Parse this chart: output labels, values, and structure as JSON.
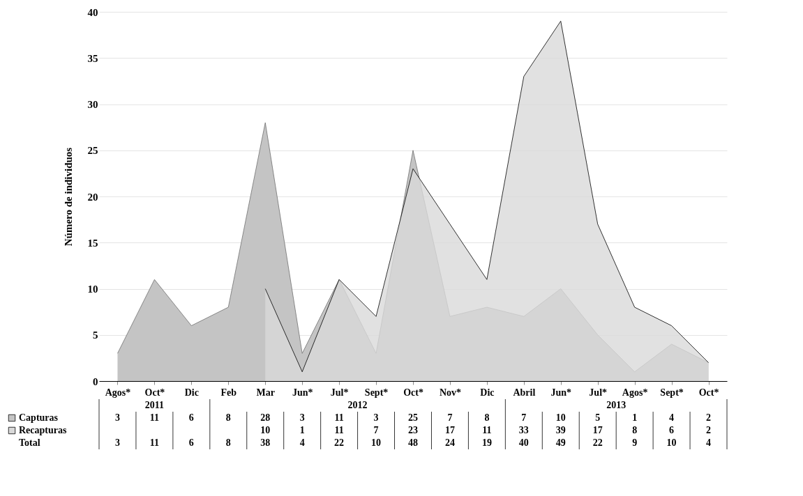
{
  "chart_data": {
    "type": "area",
    "ylabel": "Número de individuos",
    "categories": [
      "Agos*",
      "Oct*",
      "Dic",
      "Feb",
      "Mar",
      "Jun*",
      "Jul*",
      "Sept*",
      "Oct*",
      "Nov*",
      "Dic",
      "Abril",
      "Jun*",
      "Jul*",
      "Agos*",
      "Sept*",
      "Oct*"
    ],
    "series": [
      {
        "name": "Capturas",
        "color": "#c4c4c4",
        "values": [
          3,
          11,
          6,
          8,
          28,
          3,
          11,
          3,
          25,
          7,
          8,
          7,
          10,
          5,
          1,
          4,
          2
        ],
        "value_labels": [
          "3",
          "11",
          "6",
          "8",
          "28",
          "3",
          "11",
          "3",
          "25",
          "7",
          "8",
          "7",
          "10",
          "5",
          "1",
          "4",
          "2"
        ]
      },
      {
        "name": "Recapturas",
        "color": "#d9d9d9",
        "values": [
          null,
          null,
          null,
          null,
          10,
          1,
          11,
          7,
          23,
          17,
          11,
          33,
          39,
          17,
          8,
          6,
          2
        ],
        "value_labels": [
          null,
          null,
          null,
          null,
          "10",
          "1",
          "11",
          "7",
          "23",
          "17",
          "11",
          "33",
          "39",
          "17",
          "8",
          "6",
          "2"
        ]
      }
    ],
    "ylim": [
      0,
      40
    ],
    "yticks": [
      0,
      5,
      10,
      15,
      20,
      25,
      30,
      35,
      40
    ],
    "grid": "y",
    "legend": "bottom",
    "annotations": [
      "2011",
      "2012",
      "2013",
      "Total",
      "3",
      "11",
      "6",
      "8",
      "38",
      "4",
      "22",
      "10",
      "48",
      "24",
      "19",
      "40",
      "49",
      "22",
      "9",
      "10",
      "4"
    ]
  }
}
